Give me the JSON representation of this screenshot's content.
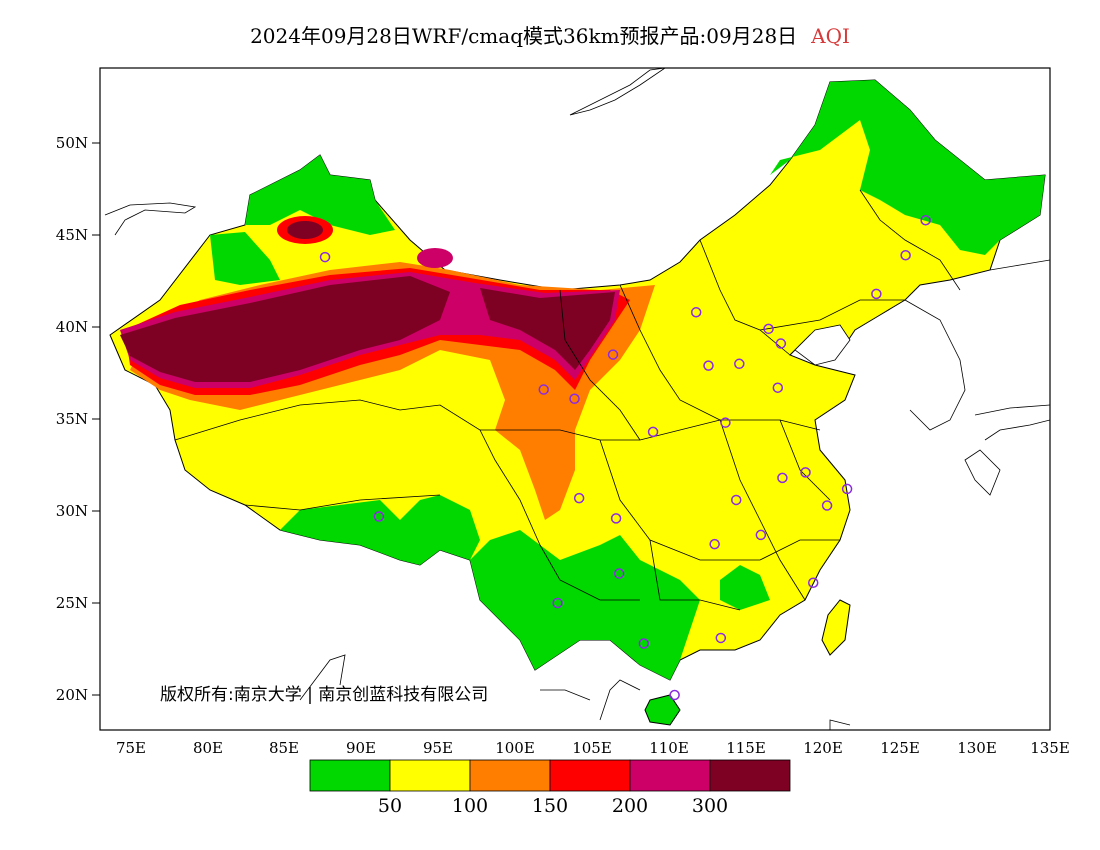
{
  "title": {
    "main": "2024年09月28日WRF/cmaq模式36km预报产品:09月28日",
    "variable": "AQI",
    "variable_color": "#d63a3a"
  },
  "axes": {
    "lat_labels": [
      "50N",
      "45N",
      "40N",
      "35N",
      "30N",
      "25N",
      "20N"
    ],
    "lon_labels": [
      "75E",
      "80E",
      "85E",
      "90E",
      "95E",
      "100E",
      "105E",
      "110E",
      "115E",
      "120E",
      "125E",
      "130E",
      "135E"
    ]
  },
  "copyright": "版权所有:南京大学 | 南京创蓝科技有限公司",
  "legend": {
    "colors": [
      "#00d800",
      "#ffff00",
      "#ff7e00",
      "#ff0000",
      "#cc0066",
      "#7e0023"
    ],
    "labels": [
      "50",
      "100",
      "150",
      "200",
      "300"
    ]
  },
  "stations": [
    {
      "lon": 87.6,
      "lat": 43.8
    },
    {
      "lon": 91.1,
      "lat": 29.7
    },
    {
      "lon": 101.8,
      "lat": 36.6
    },
    {
      "lon": 103.8,
      "lat": 36.1
    },
    {
      "lon": 106.3,
      "lat": 38.5
    },
    {
      "lon": 111.7,
      "lat": 40.8
    },
    {
      "lon": 112.5,
      "lat": 37.9
    },
    {
      "lon": 114.5,
      "lat": 38.0
    },
    {
      "lon": 116.4,
      "lat": 39.9
    },
    {
      "lon": 117.2,
      "lat": 39.1
    },
    {
      "lon": 123.4,
      "lat": 41.8
    },
    {
      "lon": 125.3,
      "lat": 43.9
    },
    {
      "lon": 126.6,
      "lat": 45.8
    },
    {
      "lon": 108.9,
      "lat": 34.3
    },
    {
      "lon": 113.6,
      "lat": 34.8
    },
    {
      "lon": 117.0,
      "lat": 36.7
    },
    {
      "lon": 104.1,
      "lat": 30.7
    },
    {
      "lon": 106.5,
      "lat": 29.6
    },
    {
      "lon": 114.3,
      "lat": 30.6
    },
    {
      "lon": 117.3,
      "lat": 31.8
    },
    {
      "lon": 118.8,
      "lat": 32.1
    },
    {
      "lon": 120.2,
      "lat": 30.3
    },
    {
      "lon": 121.5,
      "lat": 31.2
    },
    {
      "lon": 112.9,
      "lat": 28.2
    },
    {
      "lon": 115.9,
      "lat": 28.7
    },
    {
      "lon": 106.7,
      "lat": 26.6
    },
    {
      "lon": 102.7,
      "lat": 25.0
    },
    {
      "lon": 119.3,
      "lat": 26.1
    },
    {
      "lon": 113.3,
      "lat": 23.1
    },
    {
      "lon": 108.3,
      "lat": 22.8
    },
    {
      "lon": 110.3,
      "lat": 20.0
    }
  ]
}
